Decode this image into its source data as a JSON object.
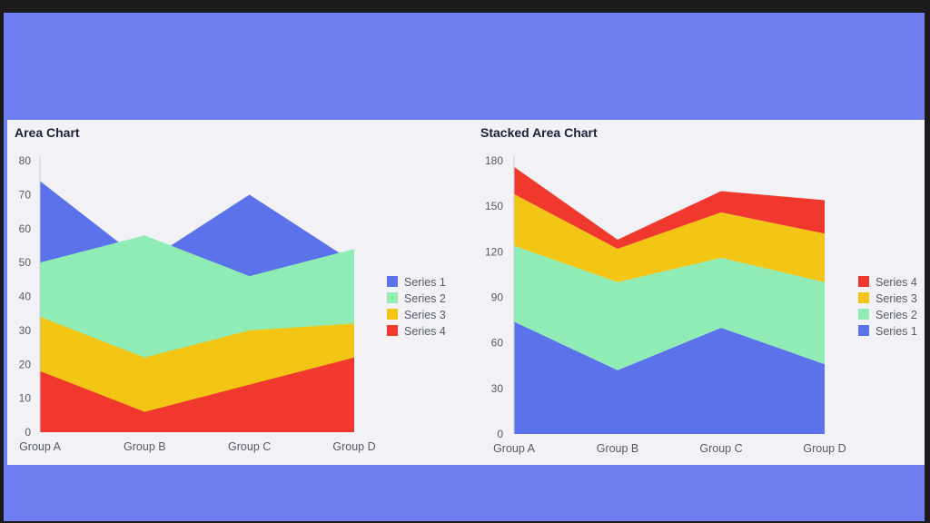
{
  "colors": {
    "series1": "#5b72ea",
    "series2": "#8fecb4",
    "series3": "#f3c515",
    "series4": "#f0382f",
    "axis_text": "#555a66",
    "title": "#1b1f3a"
  },
  "chart_data": [
    {
      "type": "area",
      "title": "Area Chart",
      "categories": [
        "Group A",
        "Group B",
        "Group C",
        "Group D"
      ],
      "ylim": [
        0,
        80
      ],
      "yticks": [
        0,
        10,
        20,
        30,
        40,
        50,
        60,
        70,
        80
      ],
      "legend_position": "right",
      "series": [
        {
          "name": "Series 1",
          "values": [
            74,
            50,
            70,
            50
          ]
        },
        {
          "name": "Series 2",
          "values": [
            50,
            58,
            46,
            54
          ]
        },
        {
          "name": "Series 3",
          "values": [
            34,
            22,
            30,
            32
          ]
        },
        {
          "name": "Series 4",
          "values": [
            18,
            6,
            14,
            22
          ]
        }
      ],
      "legend": [
        "Series 1",
        "Series 2",
        "Series 3",
        "Series 4"
      ]
    },
    {
      "type": "stacked-area",
      "title": "Stacked Area Chart",
      "categories": [
        "Group A",
        "Group B",
        "Group C",
        "Group D"
      ],
      "ylim": [
        0,
        180
      ],
      "yticks": [
        0,
        30,
        60,
        90,
        120,
        150,
        180
      ],
      "legend_position": "right",
      "series": [
        {
          "name": "Series 1",
          "values": [
            74,
            42,
            70,
            46
          ]
        },
        {
          "name": "Series 2",
          "values": [
            50,
            58,
            46,
            54
          ]
        },
        {
          "name": "Series 3",
          "values": [
            34,
            22,
            30,
            32
          ]
        },
        {
          "name": "Series 4",
          "values": [
            18,
            6,
            14,
            22
          ]
        }
      ],
      "legend": [
        "Series 4",
        "Series 3",
        "Series 2",
        "Series 1"
      ]
    }
  ]
}
